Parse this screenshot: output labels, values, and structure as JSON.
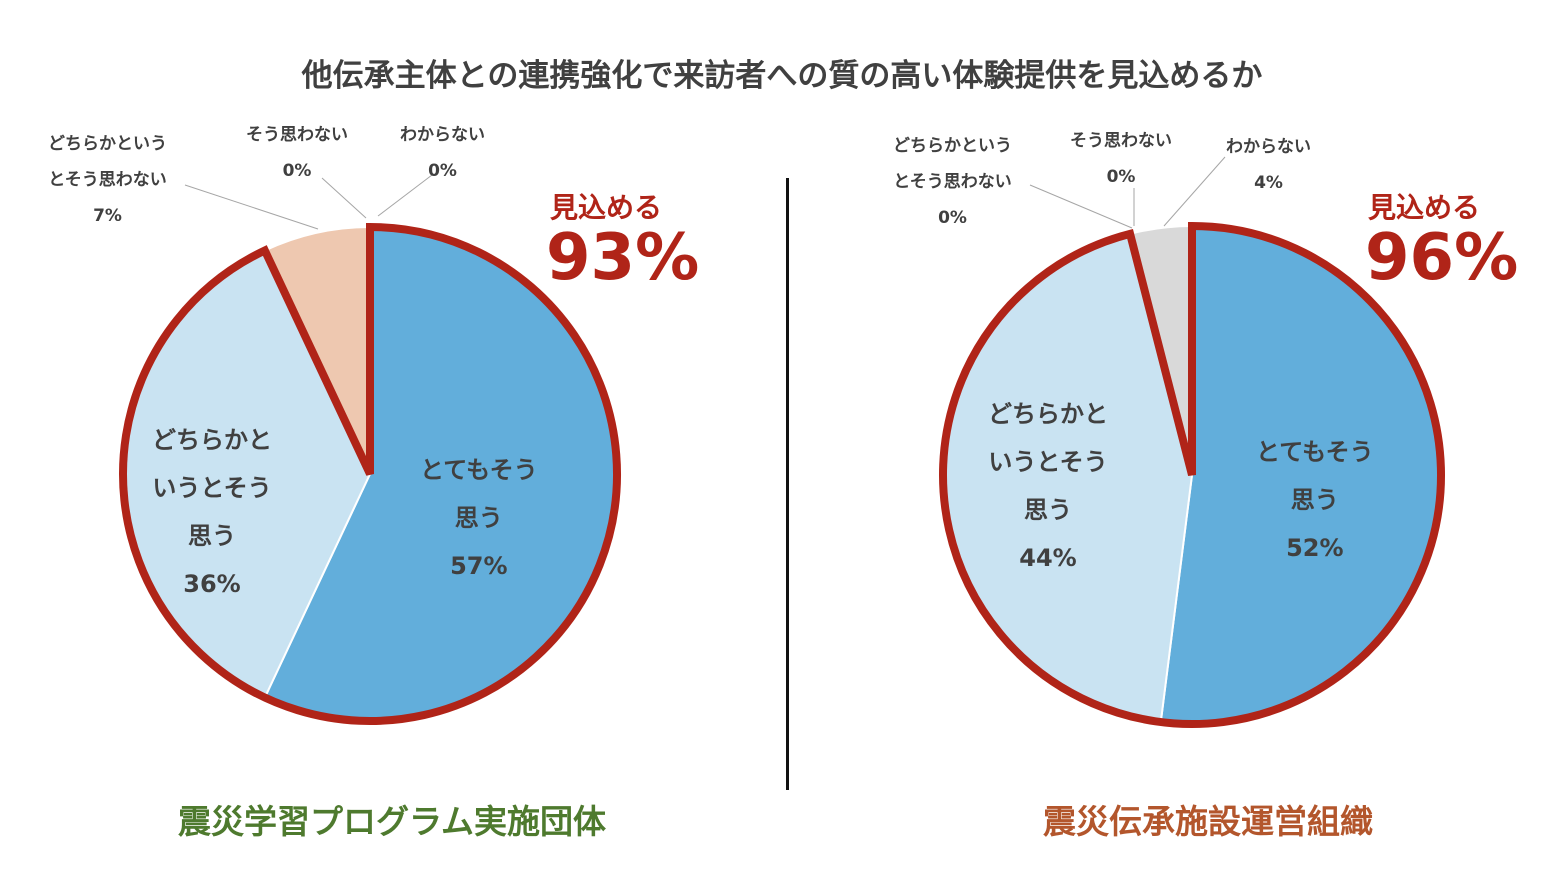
{
  "chart_data": [
    {
      "type": "pie",
      "title": "他伝承主体との連携強化で来訪者への質の高い体験提供を見込めるか",
      "group": "震災学習プログラム実施団体",
      "categories": [
        "とてもそう思う",
        "どちらかというとそう思う",
        "どちらかというとそう思わない",
        "そう思わない",
        "わからない"
      ],
      "values": [
        57,
        36,
        7,
        0,
        0
      ],
      "labels": [
        [
          "とてもそう",
          "思う",
          "57%"
        ],
        [
          "どちらかと",
          "いうとそう",
          "思う",
          "36%"
        ],
        [
          "どちらかという",
          "とそう思わない",
          "7%"
        ],
        [
          "そう思わない",
          "0%"
        ],
        [
          "わからない",
          "0%"
        ]
      ],
      "highlight": {
        "label": "見込める",
        "value": "93%",
        "slices": [
          0,
          1
        ]
      },
      "start_angle_deg": 0,
      "direction": "clockwise"
    },
    {
      "type": "pie",
      "group": "震災伝承施設運営組織",
      "categories": [
        "とてもそう思う",
        "どちらかというとそう思う",
        "どちらかというとそう思わない",
        "そう思わない",
        "わからない"
      ],
      "values": [
        52,
        44,
        0,
        0,
        4
      ],
      "labels": [
        [
          "とてもそう",
          "思う",
          "52%"
        ],
        [
          "どちらかと",
          "いうとそう",
          "思う",
          "44%"
        ],
        [
          "どちらかという",
          "とそう思わない",
          "0%"
        ],
        [
          "そう思わない",
          "0%"
        ],
        [
          "わからない",
          "4%"
        ]
      ],
      "highlight": {
        "label": "見込める",
        "value": "96%",
        "slices": [
          0,
          1
        ]
      },
      "start_angle_deg": 0,
      "direction": "clockwise"
    }
  ],
  "colors": {
    "strong_agree": "#62AEDB",
    "agree": "#C9E3F2",
    "disagree_somewhat": "#EEC8B0",
    "disagree": "#A6A6A6",
    "unknown": "#D9D9D9",
    "highlight": "#B02418",
    "group1": "#4E7A2E",
    "group2": "#B3562C"
  }
}
